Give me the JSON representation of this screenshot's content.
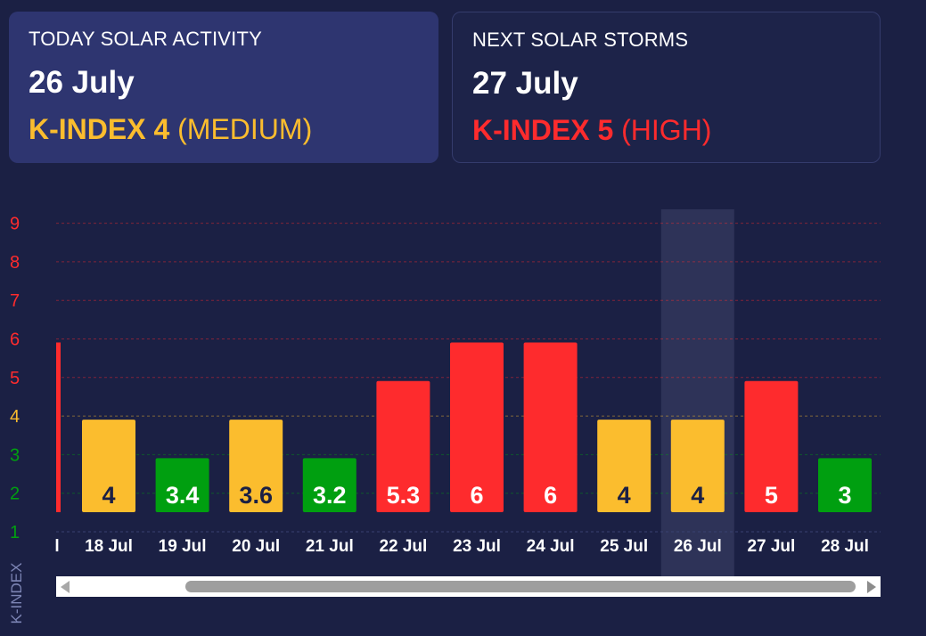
{
  "today": {
    "heading": "TODAY SOLAR ACTIVITY",
    "date": "26 July",
    "k_label": "K-INDEX 4",
    "k_level": "(MEDIUM)",
    "color": "#fbbd2e"
  },
  "next": {
    "heading": "NEXT SOLAR STORMS",
    "date": "27 July",
    "k_label": "K-INDEX 5",
    "k_level": "(HIGH)",
    "color": "#fe2b2d"
  },
  "colors": {
    "low": "#009f10",
    "medium": "#fbbd2e",
    "high": "#fe2b2d",
    "label_dark": "#1b2044",
    "label_light": "#ffffff"
  },
  "chart_data": {
    "type": "bar",
    "ylabel": "K-INDEX",
    "yticks": [
      1,
      2,
      3,
      4,
      5,
      6,
      7,
      8,
      9
    ],
    "ylim": [
      1,
      9
    ],
    "partial_left_value": 6,
    "categories": [
      "18 Jul",
      "19 Jul",
      "20 Jul",
      "21 Jul",
      "22 Jul",
      "23 Jul",
      "24 Jul",
      "25 Jul",
      "26 Jul",
      "27 Jul",
      "28 Jul"
    ],
    "values": [
      4,
      3,
      4,
      3,
      5,
      6,
      6,
      4,
      4,
      5,
      3
    ],
    "labels": [
      "4",
      "3.4",
      "3.6",
      "3.2",
      "5.3",
      "6",
      "6",
      "4",
      "4",
      "5",
      "3"
    ],
    "highlight_category": "26 Jul",
    "grid": true,
    "legend": "none"
  },
  "scrollbar": {
    "left_icon": "scroll-left-arrow-icon",
    "right_icon": "scroll-right-arrow-icon"
  }
}
